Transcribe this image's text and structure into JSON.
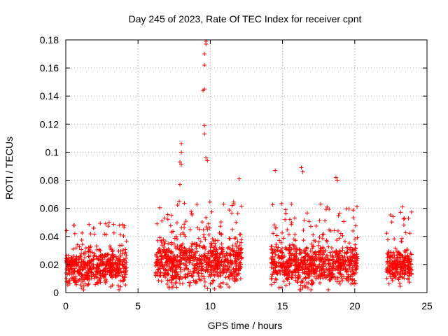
{
  "chart_data": {
    "type": "scatter",
    "title": "Day 245 of 2023, Rate Of TEC Index for receiver cpnt",
    "xlabel": "GPS time / hours",
    "ylabel": "ROTI / TECUs",
    "xlim": [
      0,
      25
    ],
    "ylim": [
      0,
      0.18
    ],
    "x_ticks": [
      0,
      5,
      10,
      15,
      20,
      25
    ],
    "x_tick_labels": [
      "0",
      "5",
      "10",
      "15",
      "20",
      "25"
    ],
    "y_ticks": [
      0,
      0.02,
      0.04,
      0.06,
      0.08,
      0.1,
      0.12,
      0.14,
      0.16,
      0.18
    ],
    "y_tick_labels": [
      "0",
      "0.02",
      "0.04",
      "0.06",
      "0.08",
      "0.1",
      "0.12",
      "0.14",
      "0.16",
      "0.18"
    ],
    "grid": true,
    "marker": "+",
    "color": "#ff0000",
    "series": [
      {
        "name": "ROTI",
        "segments": [
          {
            "x_start": 0.0,
            "x_end": 4.2,
            "baseline": 0.018,
            "spread": 0.012,
            "max_peak": 0.05
          },
          {
            "x_start": 6.2,
            "x_end": 12.2,
            "baseline": 0.022,
            "spread": 0.016,
            "max_peak": 0.18
          },
          {
            "x_start": 14.2,
            "x_end": 20.2,
            "baseline": 0.02,
            "spread": 0.015,
            "max_peak": 0.09
          },
          {
            "x_start": 22.2,
            "x_end": 24.0,
            "baseline": 0.02,
            "spread": 0.012,
            "max_peak": 0.062
          }
        ],
        "highlights": [
          {
            "x": 3.0,
            "y": 0.05
          },
          {
            "x": 8.0,
            "y": 0.106
          },
          {
            "x": 8.0,
            "y": 0.1
          },
          {
            "x": 7.9,
            "y": 0.093
          },
          {
            "x": 8.0,
            "y": 0.091
          },
          {
            "x": 7.9,
            "y": 0.077
          },
          {
            "x": 9.7,
            "y": 0.179
          },
          {
            "x": 9.7,
            "y": 0.177
          },
          {
            "x": 9.6,
            "y": 0.17
          },
          {
            "x": 9.6,
            "y": 0.162
          },
          {
            "x": 9.6,
            "y": 0.145
          },
          {
            "x": 9.5,
            "y": 0.144
          },
          {
            "x": 9.6,
            "y": 0.119
          },
          {
            "x": 9.6,
            "y": 0.113
          },
          {
            "x": 9.7,
            "y": 0.096
          },
          {
            "x": 9.8,
            "y": 0.094
          },
          {
            "x": 12.0,
            "y": 0.081
          },
          {
            "x": 14.5,
            "y": 0.087
          },
          {
            "x": 16.3,
            "y": 0.089
          },
          {
            "x": 16.4,
            "y": 0.086
          },
          {
            "x": 18.7,
            "y": 0.082
          },
          {
            "x": 18.8,
            "y": 0.08
          },
          {
            "x": 23.3,
            "y": 0.061
          }
        ]
      }
    ]
  }
}
